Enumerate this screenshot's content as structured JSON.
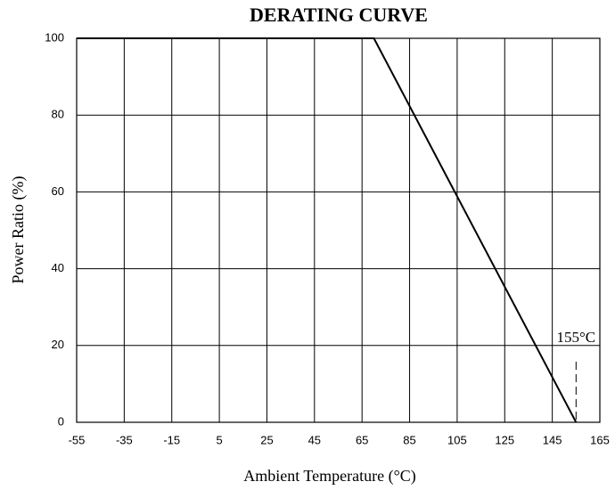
{
  "chart_data": {
    "type": "line",
    "title": "DERATING CURVE",
    "x_label": "Ambient Temperature  (°C)",
    "y_label": "Power Ratio (%)",
    "x": [
      -55,
      70,
      155
    ],
    "series": [
      {
        "name": "Derating",
        "color": "#000000",
        "values": [
          100,
          100,
          0
        ]
      }
    ],
    "xlim": [
      -55,
      165
    ],
    "xticks": [
      -55,
      -35,
      -15,
      5,
      25,
      45,
      65,
      85,
      105,
      125,
      145,
      165
    ],
    "ylim": [
      0,
      100
    ],
    "yticks": [
      0,
      20,
      40,
      60,
      80,
      100
    ],
    "grid": true,
    "annotations": [
      {
        "text": "155°C",
        "x": 155
      }
    ]
  }
}
